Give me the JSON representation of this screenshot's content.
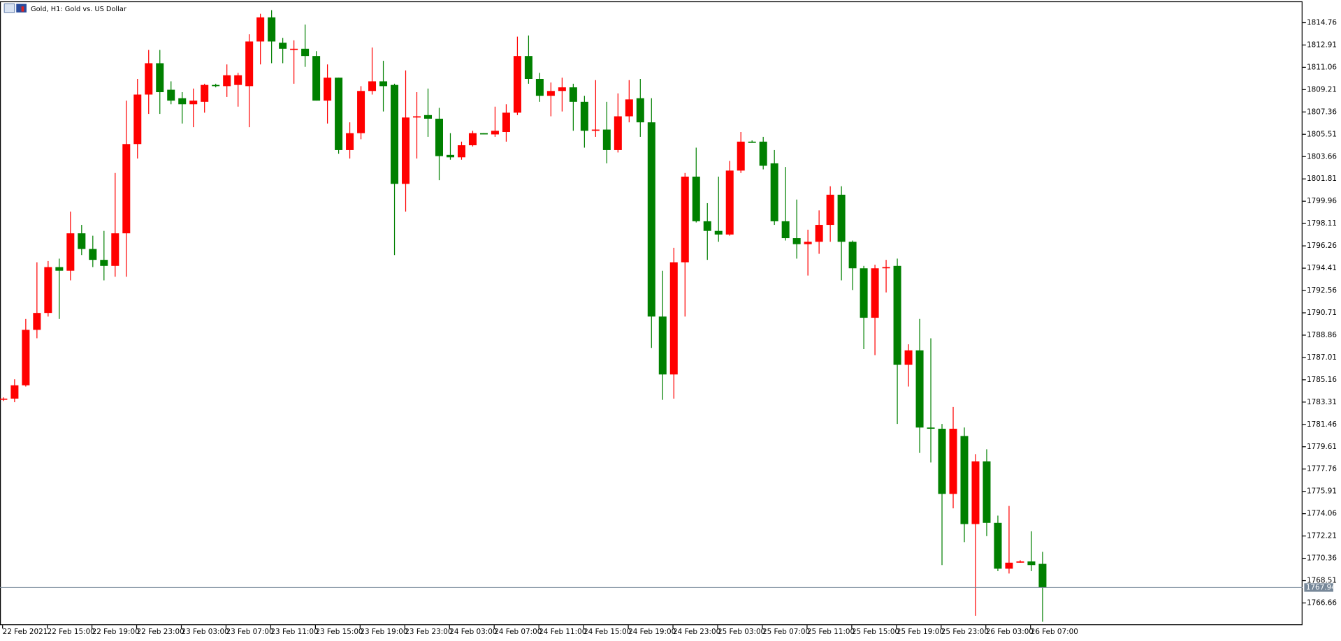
{
  "chart_data": {
    "type": "candlestick",
    "title": "Gold, H1:  Gold vs. US Dollar",
    "categories": [
      "22 Feb 2021",
      null,
      null,
      null,
      "22 Feb 15:00",
      null,
      null,
      null,
      "22 Feb 19:00",
      null,
      null,
      null,
      "22 Feb 23:00",
      null,
      null,
      null,
      "23 Feb 03:00",
      null,
      null,
      null,
      "23 Feb 07:00",
      null,
      null,
      null,
      "23 Feb 11:00",
      null,
      null,
      null,
      "23 Feb 15:00",
      null,
      null,
      null,
      "23 Feb 19:00",
      null,
      null,
      null,
      "23 Feb 23:00",
      null,
      null,
      null,
      "24 Feb 03:00",
      null,
      null,
      null,
      "24 Feb 07:00",
      null,
      null,
      null,
      "24 Feb 11:00",
      null,
      null,
      null,
      "24 Feb 15:00",
      null,
      null,
      null,
      "24 Feb 19:00",
      null,
      null,
      null,
      "24 Feb 23:00",
      null,
      null,
      null,
      "25 Feb 03:00",
      null,
      null,
      null,
      "25 Feb 07:00",
      null,
      null,
      null,
      "25 Feb 11:00",
      null,
      null,
      null,
      "25 Feb 15:00",
      null,
      null,
      null,
      "25 Feb 19:00",
      null,
      null,
      null,
      "25 Feb 23:00",
      null,
      null,
      null,
      "26 Feb 03:00",
      null,
      null,
      null,
      "26 Feb 07:00",
      null
    ],
    "open": [
      1783.5,
      1783.6,
      1784.7,
      1789.3,
      1790.7,
      1794.5,
      1794.2,
      1797.3,
      1796.0,
      1795.1,
      1794.6,
      1797.3,
      1804.7,
      1808.8,
      1811.4,
      1809.2,
      1808.5,
      1808.0,
      1808.2,
      1809.6,
      1809.5,
      1809.6,
      1809.5,
      1813.2,
      1815.2,
      1813.1,
      1812.5,
      1812.6,
      1812.0,
      1808.3,
      1810.2,
      1804.2,
      1805.6,
      1809.1,
      1809.9,
      1809.6,
      1801.4,
      1806.9,
      1807.1,
      1806.8,
      1803.8,
      1803.6,
      1804.6,
      1805.6,
      1805.5,
      1805.7,
      1807.3,
      1812.0,
      1810.1,
      1808.7,
      1809.1,
      1809.4,
      1808.2,
      1805.8,
      1805.9,
      1804.2,
      1807.0,
      1808.5,
      1806.5,
      1790.4,
      1785.6,
      1794.9,
      1802.0,
      1798.3,
      1797.5,
      1797.2,
      1802.5,
      1804.9,
      1804.9,
      1803.1,
      1798.3,
      1796.9,
      1796.4,
      1796.6,
      1798.0,
      1800.5,
      1796.6,
      1794.4,
      1790.3,
      1794.4,
      1794.6,
      1786.4,
      1787.6,
      1781.2,
      1781.1,
      1775.7,
      1780.5,
      1773.2,
      1778.4,
      1773.3,
      1769.5,
      1770.0,
      1770.1,
      1769.9
    ],
    "high": [
      1783.7,
      1785.2,
      1790.2,
      1794.9,
      1795.0,
      1795.2,
      1799.1,
      1798.0,
      1797.1,
      1797.5,
      1802.3,
      1808.3,
      1810.1,
      1812.5,
      1812.5,
      1809.9,
      1809.0,
      1809.3,
      1809.7,
      1809.7,
      1811.3,
      1810.6,
      1813.8,
      1815.5,
      1815.8,
      1813.5,
      1813.3,
      1814.6,
      1812.4,
      1811.3,
      1810.2,
      1806.5,
      1809.5,
      1812.7,
      1811.6,
      1809.7,
      1810.8,
      1809.0,
      1809.3,
      1807.7,
      1805.6,
      1804.9,
      1805.8,
      1805.6,
      1807.8,
      1808.0,
      1813.6,
      1813.7,
      1810.6,
      1809.8,
      1810.2,
      1809.7,
      1808.7,
      1810.0,
      1808.2,
      1808.9,
      1810.0,
      1810.1,
      1808.5,
      1794.2,
      1796.1,
      1802.3,
      1804.4,
      1799.8,
      1802.0,
      1803.3,
      1805.7,
      1805.0,
      1805.3,
      1804.2,
      1802.8,
      1800.1,
      1797.6,
      1799.2,
      1801.2,
      1801.2,
      1796.7,
      1794.6,
      1794.7,
      1795.1,
      1795.2,
      1788.1,
      1790.2,
      1788.6,
      1781.5,
      1782.9,
      1781.2,
      1779.0,
      1779.4,
      1773.9,
      1774.7,
      1770.2,
      1772.6,
      1770.9
    ],
    "low": [
      1783.4,
      1783.3,
      1784.6,
      1788.6,
      1790.4,
      1790.2,
      1793.4,
      1795.5,
      1794.5,
      1793.4,
      1793.7,
      1793.7,
      1803.5,
      1807.2,
      1807.2,
      1808.0,
      1806.4,
      1806.1,
      1807.3,
      1809.4,
      1808.6,
      1807.8,
      1806.1,
      1811.3,
      1811.4,
      1811.4,
      1809.7,
      1811.1,
      1808.3,
      1806.4,
      1803.9,
      1803.5,
      1805.1,
      1808.8,
      1807.4,
      1795.5,
      1799.1,
      1803.5,
      1805.3,
      1801.7,
      1803.4,
      1803.4,
      1804.5,
      1805.5,
      1805.3,
      1804.9,
      1807.1,
      1809.7,
      1808.2,
      1807.0,
      1807.4,
      1805.8,
      1804.4,
      1805.3,
      1803.1,
      1804.0,
      1806.5,
      1805.3,
      1787.8,
      1783.5,
      1783.6,
      1790.4,
      1798.2,
      1795.1,
      1796.6,
      1797.1,
      1802.3,
      1804.8,
      1802.6,
      1798.0,
      1796.7,
      1795.2,
      1793.8,
      1795.6,
      1796.6,
      1793.4,
      1792.6,
      1787.7,
      1787.2,
      1792.4,
      1781.5,
      1784.6,
      1779.1,
      1778.3,
      1769.8,
      1774.5,
      1771.7,
      1765.6,
      1772.2,
      1769.3,
      1769.1,
      1770.0,
      1769.3,
      1765.1
    ],
    "close": [
      1783.6,
      1784.7,
      1789.3,
      1790.7,
      1794.5,
      1794.2,
      1797.3,
      1796.0,
      1795.1,
      1794.6,
      1797.3,
      1804.7,
      1808.8,
      1811.4,
      1809.0,
      1808.3,
      1808.0,
      1808.3,
      1809.6,
      1809.5,
      1810.4,
      1810.4,
      1813.2,
      1815.2,
      1813.2,
      1812.6,
      1812.6,
      1812.0,
      1808.3,
      1810.2,
      1804.2,
      1805.6,
      1809.1,
      1809.9,
      1809.5,
      1801.4,
      1806.9,
      1807.0,
      1806.8,
      1803.7,
      1803.6,
      1804.6,
      1805.6,
      1805.5,
      1805.8,
      1807.3,
      1812.0,
      1810.1,
      1808.7,
      1809.1,
      1809.4,
      1808.2,
      1805.8,
      1805.9,
      1804.2,
      1807.0,
      1808.4,
      1806.5,
      1790.4,
      1785.6,
      1794.9,
      1802.0,
      1798.3,
      1797.5,
      1797.2,
      1802.5,
      1804.9,
      1804.8,
      1802.9,
      1798.3,
      1796.9,
      1796.4,
      1796.6,
      1798.0,
      1800.5,
      1796.6,
      1794.4,
      1790.3,
      1794.4,
      1794.5,
      1786.4,
      1787.6,
      1781.2,
      1781.1,
      1775.7,
      1781.1,
      1773.2,
      1778.4,
      1773.3,
      1769.5,
      1770.0,
      1770.1,
      1769.8,
      1767.94
    ],
    "up_color": "#ff0000",
    "down_color": "#008000",
    "ylim": [
      1764.82,
      1816.46
    ],
    "yticks": [
      1814.76,
      1812.91,
      1811.06,
      1809.21,
      1807.36,
      1805.51,
      1803.66,
      1801.81,
      1799.96,
      1798.11,
      1796.26,
      1794.41,
      1792.56,
      1790.71,
      1788.86,
      1787.01,
      1785.16,
      1783.31,
      1781.46,
      1779.61,
      1777.76,
      1775.91,
      1774.06,
      1772.21,
      1770.36,
      1768.51,
      1766.66
    ],
    "last_price": 1767.94,
    "grid": false
  }
}
